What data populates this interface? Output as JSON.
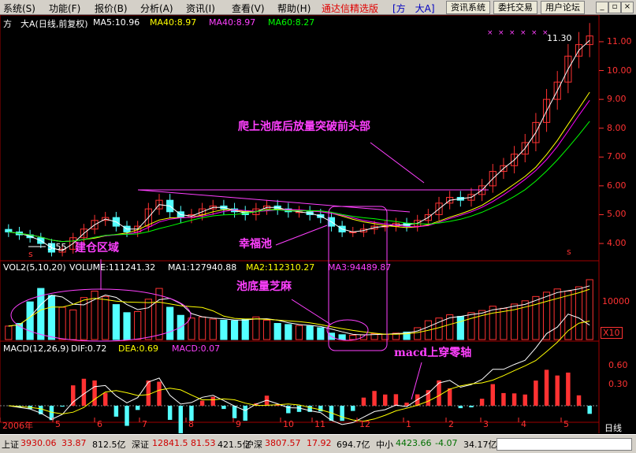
{
  "menubar": {
    "items": [
      "系统(S)",
      "功能(F)",
      "报价(B)",
      "分析(A)",
      "资讯(I)",
      "查看(V)",
      "帮助(H)"
    ],
    "app_title": "通达信精选版",
    "stock_tag": "[方　大A]",
    "buttons": [
      "资讯系统",
      "委托交易",
      "用户论坛"
    ],
    "window_controls": [
      "minimize-icon",
      "restore-icon",
      "close-icon"
    ]
  },
  "main_header": {
    "name": "方　大A(日线,前复权)",
    "ma5": "MA5:10.96",
    "ma40a": "MA40:8.97",
    "ma40b": "MA40:8.97",
    "ma60": "MA60:8.27"
  },
  "vol_header": {
    "label": "VOL2(5,10,20)",
    "volume": "VOLUME:111241.32",
    "ma1": "MA1:127940.88",
    "ma2": "MA2:112310.27",
    "ma3": "MA3:94489.87"
  },
  "macd_header": {
    "label": "MACD(12,26,9)",
    "dif": "DIF:0.72",
    "dea": "DEA:0.69",
    "macd": "MACD:0.07"
  },
  "price_axis": [
    "11.00",
    "10.00",
    "9.00",
    "8.00",
    "7.00",
    "6.00",
    "5.00",
    "4.00"
  ],
  "vol_axis": [
    "10000",
    "X10"
  ],
  "macd_axis": [
    "0.60",
    "0.30"
  ],
  "date_axis": [
    "2006年",
    "5",
    "6",
    "7",
    "8",
    "9",
    "10",
    "11",
    "12",
    "1",
    "2",
    "3",
    "4",
    "5"
  ],
  "markers": {
    "low": "3.55",
    "high": "11.30",
    "s_mark": "s"
  },
  "annotations": {
    "build_area": "建仓区域",
    "happy_pool": "幸福池",
    "climb_out": "爬上池底后放量突破前头部",
    "pool_volume": "池底量芝麻",
    "macd_cross": "macd上穿零轴"
  },
  "colors": {
    "background": "#000000",
    "ma5": "#ffffff",
    "ma40": "#ffff00",
    "ma40b": "#ff00ff",
    "ma60": "#00ff00",
    "up": "#ff3232",
    "down": "#54ffff",
    "annotation": "#ff40ff"
  },
  "statusbar": {
    "sh_label": "上证",
    "sh_value": "3930.06",
    "sh_change": "33.87",
    "sh_amount": "812.5亿",
    "sz_label": "深证",
    "sz_value": "12841.5",
    "sz_change": "81.53",
    "sz_amount": "421.5亿",
    "hs_label": "沪深",
    "hs_value": "3807.57",
    "hs_change": "17.92",
    "hs_amount": "694.7亿",
    "zx_label": "中小",
    "zx_value": "4423.66",
    "zx_change": "-4.07",
    "zx_amount": "34.17亿",
    "period": "日线"
  },
  "chart_data": {
    "type": "candlestick",
    "title": "方　大A(日线,前复权)",
    "ylim": [
      3.4,
      11.6
    ],
    "months": [
      "2006年",
      "5",
      "6",
      "7",
      "8",
      "9",
      "10",
      "11",
      "12",
      "1",
      "2",
      "3",
      "4",
      "5"
    ],
    "close_by_week": [
      4.4,
      4.3,
      4.2,
      4.0,
      3.7,
      3.8,
      4.2,
      4.5,
      4.8,
      4.9,
      4.6,
      4.4,
      4.6,
      5.2,
      5.5,
      5.1,
      4.9,
      5.0,
      5.2,
      5.3,
      5.2,
      5.1,
      5.0,
      5.2,
      5.3,
      5.2,
      5.1,
      5.1,
      5.0,
      4.9,
      4.6,
      4.4,
      4.4,
      4.5,
      4.6,
      4.6,
      4.7,
      4.6,
      4.8,
      5.0,
      5.4,
      5.6,
      5.5,
      5.7,
      6.0,
      6.5,
      6.7,
      7.1,
      7.5,
      8.2,
      9.0,
      9.6,
      10.5,
      10.9,
      11.2
    ],
    "vol_by_week": [
      2500,
      3000,
      7000,
      9500,
      8200,
      6000,
      5500,
      7800,
      9000,
      8000,
      6500,
      5000,
      5200,
      7500,
      9500,
      6000,
      4500,
      4000,
      4200,
      3800,
      3600,
      3500,
      3800,
      4200,
      3600,
      3000,
      2800,
      2600,
      2500,
      2200,
      1200,
      900,
      800,
      900,
      1100,
      1000,
      1200,
      1400,
      2200,
      3500,
      4000,
      4600,
      4300,
      5000,
      5400,
      6200,
      5800,
      6600,
      7200,
      8000,
      8800,
      9400,
      9000,
      9800,
      11124
    ]
  }
}
